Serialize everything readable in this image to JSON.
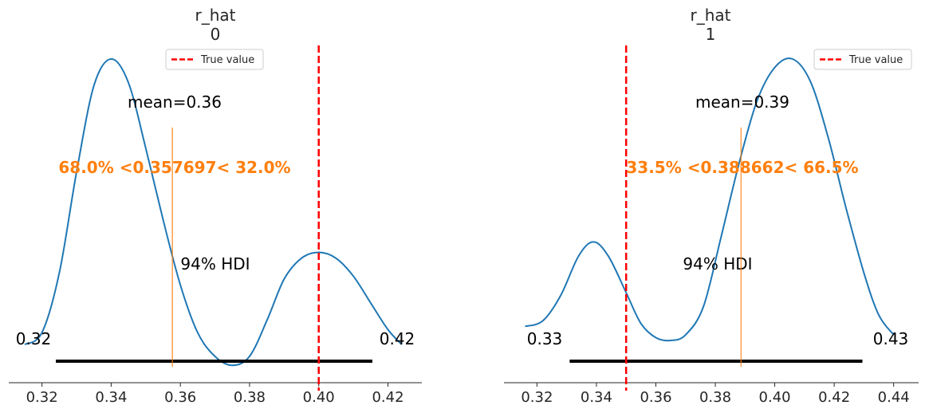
{
  "chart_data": [
    {
      "type": "kde",
      "title": "r_hat",
      "subtitle": "0",
      "xlim": [
        0.31,
        0.43
      ],
      "x_ticks": [
        0.32,
        0.34,
        0.36,
        0.38,
        0.4,
        0.42
      ],
      "x_tick_labels": [
        "0.32",
        "0.34",
        "0.36",
        "0.38",
        "0.40",
        "0.42"
      ],
      "density_curve": {
        "x": [
          0.315,
          0.32,
          0.325,
          0.33,
          0.335,
          0.34,
          0.345,
          0.35,
          0.355,
          0.36,
          0.365,
          0.37,
          0.375,
          0.38,
          0.385,
          0.39,
          0.395,
          0.4,
          0.405,
          0.41,
          0.415,
          0.42,
          0.424
        ],
        "y": [
          0.04,
          0.08,
          0.28,
          0.62,
          0.91,
          1.0,
          0.92,
          0.7,
          0.46,
          0.24,
          0.08,
          0.0,
          -0.03,
          0.0,
          0.12,
          0.26,
          0.33,
          0.35,
          0.33,
          0.27,
          0.18,
          0.09,
          0.04
        ],
        "color": "#1f77b4"
      },
      "mean_label": "mean=0.36",
      "hdi_label": "94% HDI",
      "hdi": [
        0.324,
        0.4155
      ],
      "hdi_low_label": "0.32",
      "hdi_high_label": "0.42",
      "ref_val_text": "68.0% <0.357697< 32.0%",
      "ref_val": 0.357697,
      "ref_color": "#ff7f0e",
      "true_value": 0.4,
      "true_value_color": "#ff0000",
      "legend": [
        {
          "label": "True value",
          "style": "dashed",
          "color": "#ff0000"
        }
      ],
      "legend_position": "top-right"
    },
    {
      "type": "kde",
      "title": "r_hat",
      "subtitle": "1",
      "xlim": [
        0.31,
        0.45
      ],
      "x_ticks": [
        0.32,
        0.34,
        0.36,
        0.38,
        0.4,
        0.42,
        0.44
      ],
      "x_tick_labels": [
        "0.32",
        "0.34",
        "0.36",
        "0.38",
        "0.40",
        "0.42",
        "0.44"
      ],
      "density_curve": {
        "x": [
          0.316,
          0.322,
          0.328,
          0.334,
          0.339,
          0.344,
          0.35,
          0.355,
          0.36,
          0.365,
          0.37,
          0.376,
          0.382,
          0.388,
          0.394,
          0.4,
          0.406,
          0.412,
          0.418,
          0.424,
          0.43,
          0.435,
          0.44
        ],
        "y": [
          0.05,
          0.07,
          0.16,
          0.3,
          0.35,
          0.3,
          0.17,
          0.06,
          0.01,
          0.0,
          0.02,
          0.12,
          0.37,
          0.63,
          0.85,
          0.97,
          1.0,
          0.92,
          0.72,
          0.47,
          0.24,
          0.09,
          0.02
        ],
        "color": "#1f77b4"
      },
      "mean_label": "mean=0.39",
      "hdi_label": "94% HDI",
      "hdi": [
        0.331,
        0.4295
      ],
      "hdi_low_label": "0.33",
      "hdi_high_label": "0.43",
      "ref_val_text": "33.5% <0.388662< 66.5%",
      "ref_val": 0.388662,
      "ref_color": "#ff7f0e",
      "true_value": 0.35,
      "true_value_color": "#ff0000",
      "legend": [
        {
          "label": "True value",
          "style": "dashed",
          "color": "#ff0000"
        }
      ],
      "legend_position": "top-right"
    }
  ]
}
